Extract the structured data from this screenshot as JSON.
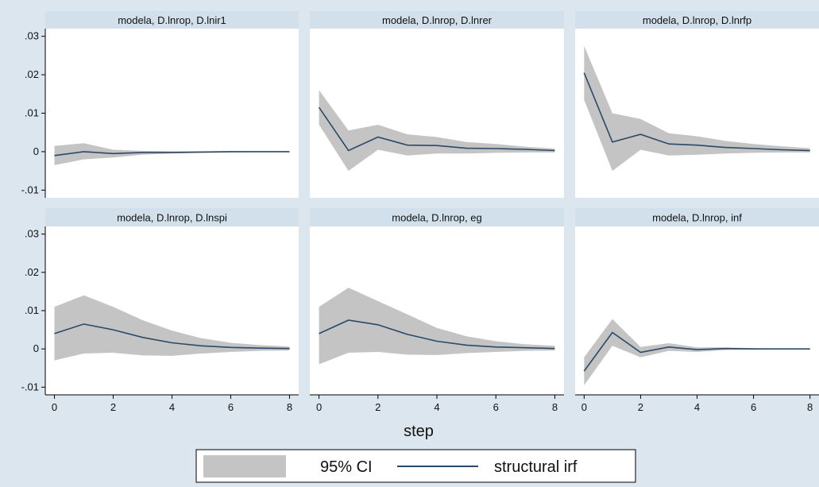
{
  "chart_data": {
    "type": "line",
    "xlabel": "step",
    "ylim": [
      -0.012,
      0.032
    ],
    "y_ticks": [
      ".03",
      ".02",
      ".01",
      "0",
      "-.01"
    ],
    "y_tick_values": [
      0.03,
      0.02,
      0.01,
      0,
      -0.01
    ],
    "x_ticks": [
      "0",
      "2",
      "4",
      "6",
      "8"
    ],
    "x_tick_values": [
      0,
      2,
      4,
      6,
      8
    ],
    "xlim": [
      -0.15,
      8.15
    ],
    "legend": {
      "position": "bottom",
      "entries": [
        {
          "label": "95% CI",
          "style": "band",
          "color": "#c4c4c4"
        },
        {
          "label": "structural irf",
          "style": "line",
          "color": "#2a4a68"
        }
      ]
    },
    "panels": [
      {
        "title": "modela, D.lnrop, D.lnir1",
        "x": [
          0,
          1,
          2,
          3,
          4,
          5,
          6,
          7,
          8
        ],
        "irf": [
          -0.001,
          0.0,
          -0.0005,
          -0.0002,
          -0.0002,
          -0.0001,
          0.0,
          0.0,
          0.0
        ],
        "lower": [
          -0.0035,
          -0.002,
          -0.0015,
          -0.0008,
          -0.0005,
          -0.0003,
          -0.0002,
          -0.0001,
          -0.0001
        ],
        "upper": [
          0.0015,
          0.0022,
          0.0005,
          0.0002,
          0.0001,
          0.0001,
          0.0001,
          0.0001,
          0.0001
        ]
      },
      {
        "title": "modela, D.lnrop, D.lnrer",
        "x": [
          0,
          1,
          2,
          3,
          4,
          5,
          6,
          7,
          8
        ],
        "irf": [
          0.0115,
          0.0003,
          0.0038,
          0.0017,
          0.0016,
          0.0009,
          0.0008,
          0.0006,
          0.0003
        ],
        "lower": [
          0.007,
          -0.005,
          0.0005,
          -0.001,
          -0.0005,
          -0.0005,
          -0.0003,
          -0.0002,
          -0.0002
        ],
        "upper": [
          0.016,
          0.0055,
          0.007,
          0.0045,
          0.0038,
          0.0025,
          0.002,
          0.0013,
          0.0008
        ]
      },
      {
        "title": "modela, D.lnrop, D.lnrfp",
        "x": [
          0,
          1,
          2,
          3,
          4,
          5,
          6,
          7,
          8
        ],
        "irf": [
          0.0205,
          0.0025,
          0.0045,
          0.002,
          0.0017,
          0.0011,
          0.0008,
          0.0005,
          0.0003
        ],
        "lower": [
          0.0135,
          -0.005,
          0.0005,
          -0.001,
          -0.0008,
          -0.0005,
          -0.0003,
          -0.0002,
          -0.0002
        ],
        "upper": [
          0.0275,
          0.01,
          0.0085,
          0.0048,
          0.004,
          0.0028,
          0.002,
          0.0014,
          0.0009
        ]
      },
      {
        "title": "modela, D.lnrop, D.lnspi",
        "x": [
          0,
          1,
          2,
          3,
          4,
          5,
          6,
          7,
          8
        ],
        "irf": [
          0.004,
          0.0065,
          0.005,
          0.003,
          0.0016,
          0.0008,
          0.0004,
          0.0002,
          0.0001
        ],
        "lower": [
          -0.003,
          -0.0012,
          -0.001,
          -0.0017,
          -0.0018,
          -0.0012,
          -0.0008,
          -0.0005,
          -0.0004
        ],
        "upper": [
          0.011,
          0.014,
          0.011,
          0.0075,
          0.0048,
          0.0028,
          0.0016,
          0.001,
          0.0006
        ]
      },
      {
        "title": "modela, D.lnrop, eg",
        "x": [
          0,
          1,
          2,
          3,
          4,
          5,
          6,
          7,
          8
        ],
        "irf": [
          0.004,
          0.0075,
          0.0063,
          0.0038,
          0.002,
          0.001,
          0.0005,
          0.0003,
          0.0001
        ],
        "lower": [
          -0.004,
          -0.001,
          -0.0008,
          -0.0015,
          -0.0016,
          -0.0011,
          -0.0008,
          -0.0005,
          -0.0004
        ],
        "upper": [
          0.011,
          0.016,
          0.0125,
          0.009,
          0.0055,
          0.0033,
          0.002,
          0.0012,
          0.0008
        ]
      },
      {
        "title": "modela, D.lnrop, inf",
        "x": [
          0,
          1,
          2,
          3,
          4,
          5,
          6,
          7,
          8
        ],
        "irf": [
          -0.0058,
          0.0043,
          -0.0009,
          0.0005,
          -0.0002,
          0.0001,
          0.0,
          0.0,
          0.0
        ],
        "lower": [
          -0.0095,
          0.0008,
          -0.0022,
          -0.0005,
          -0.0008,
          -0.0003,
          -0.0002,
          -0.0001,
          -0.0001
        ],
        "upper": [
          -0.0022,
          0.0078,
          0.0005,
          0.0015,
          0.0004,
          0.0004,
          0.0002,
          0.0001,
          0.0001
        ]
      }
    ]
  }
}
